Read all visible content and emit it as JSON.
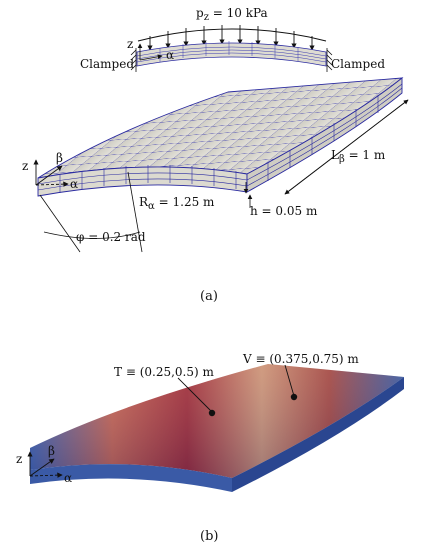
{
  "panel_a": {
    "load": "p",
    "load_sub": "z",
    "load_value": " = 10 kPa",
    "clamped_left": "Clamped",
    "clamped_right": "Clamped",
    "axis_z_top": "z",
    "axis_alpha_top": "α",
    "axis_z": "z",
    "axis_beta": "β",
    "axis_alpha": "α",
    "radius_main": "R",
    "radius_sub": "α",
    "radius_value": " = 1.25 m",
    "thickness": "h = 0.05 m",
    "length_main": "L",
    "length_sub": "β",
    "length_value": " = 1 m",
    "angle": "φ = 0.2 rad",
    "caption": "(a)"
  },
  "panel_b": {
    "point_t": "T ≡ (0.25,0.5) m",
    "point_v": "V ≡ (0.375,0.75) m",
    "axis_z": "z",
    "axis_beta": "β",
    "axis_alpha": "α",
    "caption": "(b)"
  },
  "colors": {
    "mesh": "#2a2aa0",
    "shell_fill": "#d8d6cc",
    "field_high": "#a4232d",
    "field_low": "#2d4f9a"
  }
}
